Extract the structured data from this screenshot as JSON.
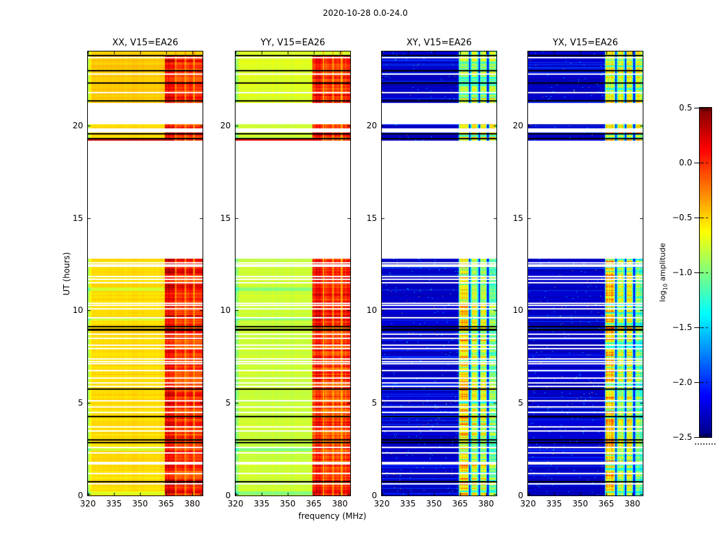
{
  "figure": {
    "title": "2020-10-28 0.0-24.0",
    "background": "#ffffff"
  },
  "axes": {
    "x_label": "frequency (MHz)",
    "y_label": "UT (hours)",
    "x_ticks": [
      320,
      335,
      350,
      365,
      380
    ],
    "x_tick_labels": [
      "320",
      "335",
      "350",
      "365",
      "380"
    ],
    "y_ticks": [
      0,
      5,
      10,
      15,
      20
    ],
    "y_tick_labels": [
      "0",
      "5",
      "10",
      "15",
      "20"
    ],
    "x_range": [
      320,
      385.9
    ],
    "y_range": [
      0,
      24
    ]
  },
  "colorbar": {
    "label_pre": "log",
    "label_sub": "10",
    "label_post": " amplitude",
    "tick_values": [
      0.5,
      0.0,
      -0.5,
      -1.0,
      -1.5,
      -2.0,
      -2.5
    ],
    "tick_labels": [
      "0.5",
      "0.0",
      "−0.5",
      "−1.0",
      "−1.5",
      "−2.0",
      "−2.5"
    ],
    "vmin": -2.5,
    "vmax": 0.5,
    "colormap": "jet"
  },
  "chart_data": {
    "type": "heatmap",
    "description": "Dynamic spectra (UT hours vs frequency) of log10 amplitude for four polarization products of baseline V15-EA26",
    "panels": [
      {
        "key": "XX",
        "title": "XX, V15=EA26",
        "family": "warm",
        "bg": -0.52,
        "bg_left": -0.92,
        "strip_base": [
          0.08,
          0.0,
          -0.02,
          0.03
        ],
        "strip_amp": 0.3,
        "gap": -0.28
      },
      {
        "key": "YY",
        "title": "YY, V15=EA26",
        "family": "warm",
        "bg": -0.78,
        "bg_left": -1.05,
        "strip_base": [
          0.02,
          -0.05,
          -0.08,
          -0.03
        ],
        "strip_amp": 0.3,
        "gap": -0.38
      },
      {
        "key": "XY",
        "title": "XY, V15=EA26",
        "family": "cold",
        "bg": -2.28,
        "bg_left": -2.28,
        "strip_base": [
          -0.5,
          -0.8,
          -0.75,
          -1.05
        ],
        "strip_amp": 0.5,
        "gap": -2.02
      },
      {
        "key": "YX",
        "title": "YX, V15=EA26",
        "family": "cold",
        "bg": -2.28,
        "bg_left": -2.28,
        "strip_base": [
          -0.5,
          -0.8,
          -0.75,
          -1.05
        ],
        "strip_amp": 0.5,
        "gap": -2.02
      }
    ],
    "time_segments": [
      {
        "t0": 0.0,
        "t1": 12.8
      },
      {
        "t0": 19.17,
        "t1": 19.64
      },
      {
        "t0": 19.86,
        "t1": 20.05
      },
      {
        "t0": 21.22,
        "t1": 24.0
      }
    ],
    "white_lines": [
      {
        "t": 23.66
      },
      {
        "t": 22.76
      },
      {
        "t": 21.76
      },
      {
        "t": 12.57
      },
      {
        "t": 12.46
      },
      {
        "t": 12.38
      },
      {
        "t": 11.85
      },
      {
        "t": 11.68
      },
      {
        "t": 11.5
      },
      {
        "t": 10.4
      },
      {
        "t": 10.28
      },
      {
        "t": 10.1
      },
      {
        "t": 9.62
      },
      {
        "t": 8.72
      },
      {
        "t": 8.5
      },
      {
        "t": 8.12
      },
      {
        "t": 7.94
      },
      {
        "t": 7.38
      },
      {
        "t": 7.22
      },
      {
        "t": 7.12
      },
      {
        "t": 6.76
      },
      {
        "t": 6.35
      },
      {
        "t": 6.1
      },
      {
        "t": 5.9
      },
      {
        "t": 5.12
      },
      {
        "t": 4.8
      },
      {
        "t": 4.5
      },
      {
        "t": 3.7
      },
      {
        "t": 3.5
      },
      {
        "t": 2.6
      },
      {
        "t": 2.3
      },
      {
        "t": 1.75,
        "w": 0.14
      },
      {
        "t": 1.2
      },
      {
        "t": 0.64
      }
    ],
    "black_lines": [
      {
        "t": 23.78
      },
      {
        "t": 22.96
      },
      {
        "t": 22.29
      },
      {
        "t": 21.34
      },
      {
        "t": 19.55
      },
      {
        "t": 19.28
      },
      {
        "t": 9.12,
        "w": 0.09
      },
      {
        "t": 8.97,
        "w": 0.1
      },
      {
        "t": 5.75
      },
      {
        "t": 4.27
      },
      {
        "t": 3.0
      },
      {
        "t": 2.86
      },
      {
        "t": 0.73
      }
    ],
    "rfi_strips": [
      {
        "f0": 364.0,
        "f1": 370.0
      },
      {
        "f0": 370.9,
        "f1": 375.3
      },
      {
        "f0": 376.3,
        "f1": 380.3
      },
      {
        "f0": 381.3,
        "f1": 385.9
      }
    ],
    "hot_rows": [
      {
        "panels": [
          0
        ],
        "t0": 19.17,
        "t1": 19.26,
        "f0": 320,
        "f1": 369,
        "v": 0.3
      },
      {
        "panels": [
          1
        ],
        "t0": 19.17,
        "t1": 19.26,
        "f0": 320,
        "f1": 369,
        "v": 0.18
      }
    ],
    "green_rows": [
      11.15,
      9.55,
      2.5,
      0.13
    ],
    "strip_boost_times": [
      {
        "t0": 9.2,
        "t1": 12.8
      },
      {
        "t0": 0.0,
        "t1": 0.85
      }
    ]
  }
}
